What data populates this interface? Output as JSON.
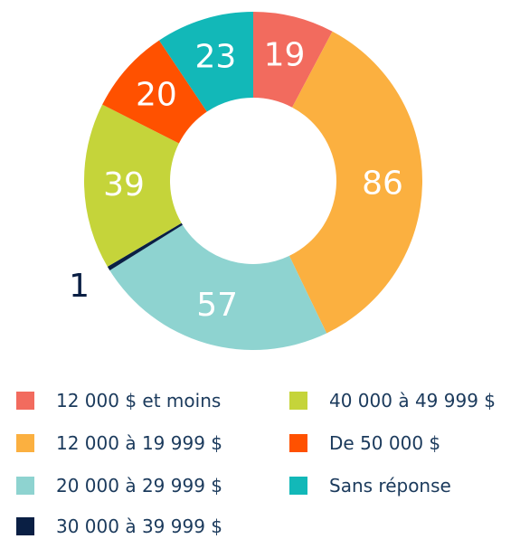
{
  "chart_data": {
    "type": "donut",
    "series": [
      {
        "name": "12 000 $ et moins",
        "color": "#f26b5e",
        "values": [
          19
        ]
      },
      {
        "name": "12 000 à 19 999 $",
        "color": "#fbb040",
        "values": [
          86
        ]
      },
      {
        "name": "20 000 à 29 999 $",
        "color": "#8ed3d0",
        "values": [
          57
        ]
      },
      {
        "name": "30 000 à 39 999 $",
        "color": "#0a1f44",
        "values": [
          1
        ]
      },
      {
        "name": "40 000 à 49 999 $",
        "color": "#c5d43a",
        "values": [
          39
        ]
      },
      {
        "name": "De 50 000 $",
        "color": "#ff5100",
        "values": [
          20
        ]
      },
      {
        "name": "Sans réponse",
        "color": "#12b8b8",
        "values": [
          23
        ]
      }
    ]
  }
}
